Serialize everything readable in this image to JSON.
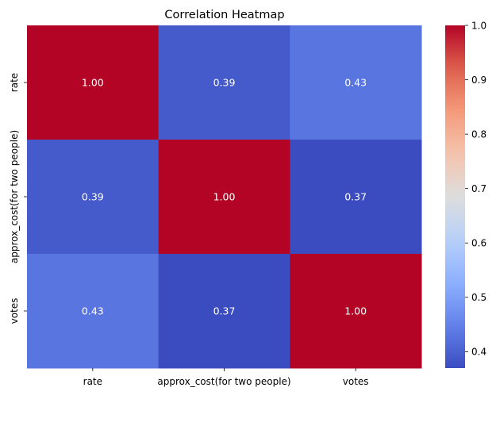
{
  "chart_data": {
    "type": "heatmap",
    "title": "Correlation Heatmap",
    "xlabel": "",
    "ylabel": "",
    "x_categories": [
      "rate",
      "approx_cost(for two people)",
      "votes"
    ],
    "y_categories": [
      "rate",
      "approx_cost(for two people)",
      "votes"
    ],
    "values": [
      [
        1.0,
        0.39,
        0.43
      ],
      [
        0.39,
        1.0,
        0.37
      ],
      [
        0.43,
        0.37,
        1.0
      ]
    ],
    "annotation_format": "0.00",
    "colormap": "coolwarm",
    "vmin": 0.37,
    "vmax": 1.0,
    "colorbar_ticks": [
      0.4,
      0.5,
      0.6,
      0.7,
      0.8,
      0.9,
      1.0
    ],
    "colorbar_tick_labels": [
      "0.4",
      "0.5",
      "0.6",
      "0.7",
      "0.8",
      "0.9",
      "1.0"
    ],
    "grid": false,
    "legend": "colorbar-right"
  }
}
